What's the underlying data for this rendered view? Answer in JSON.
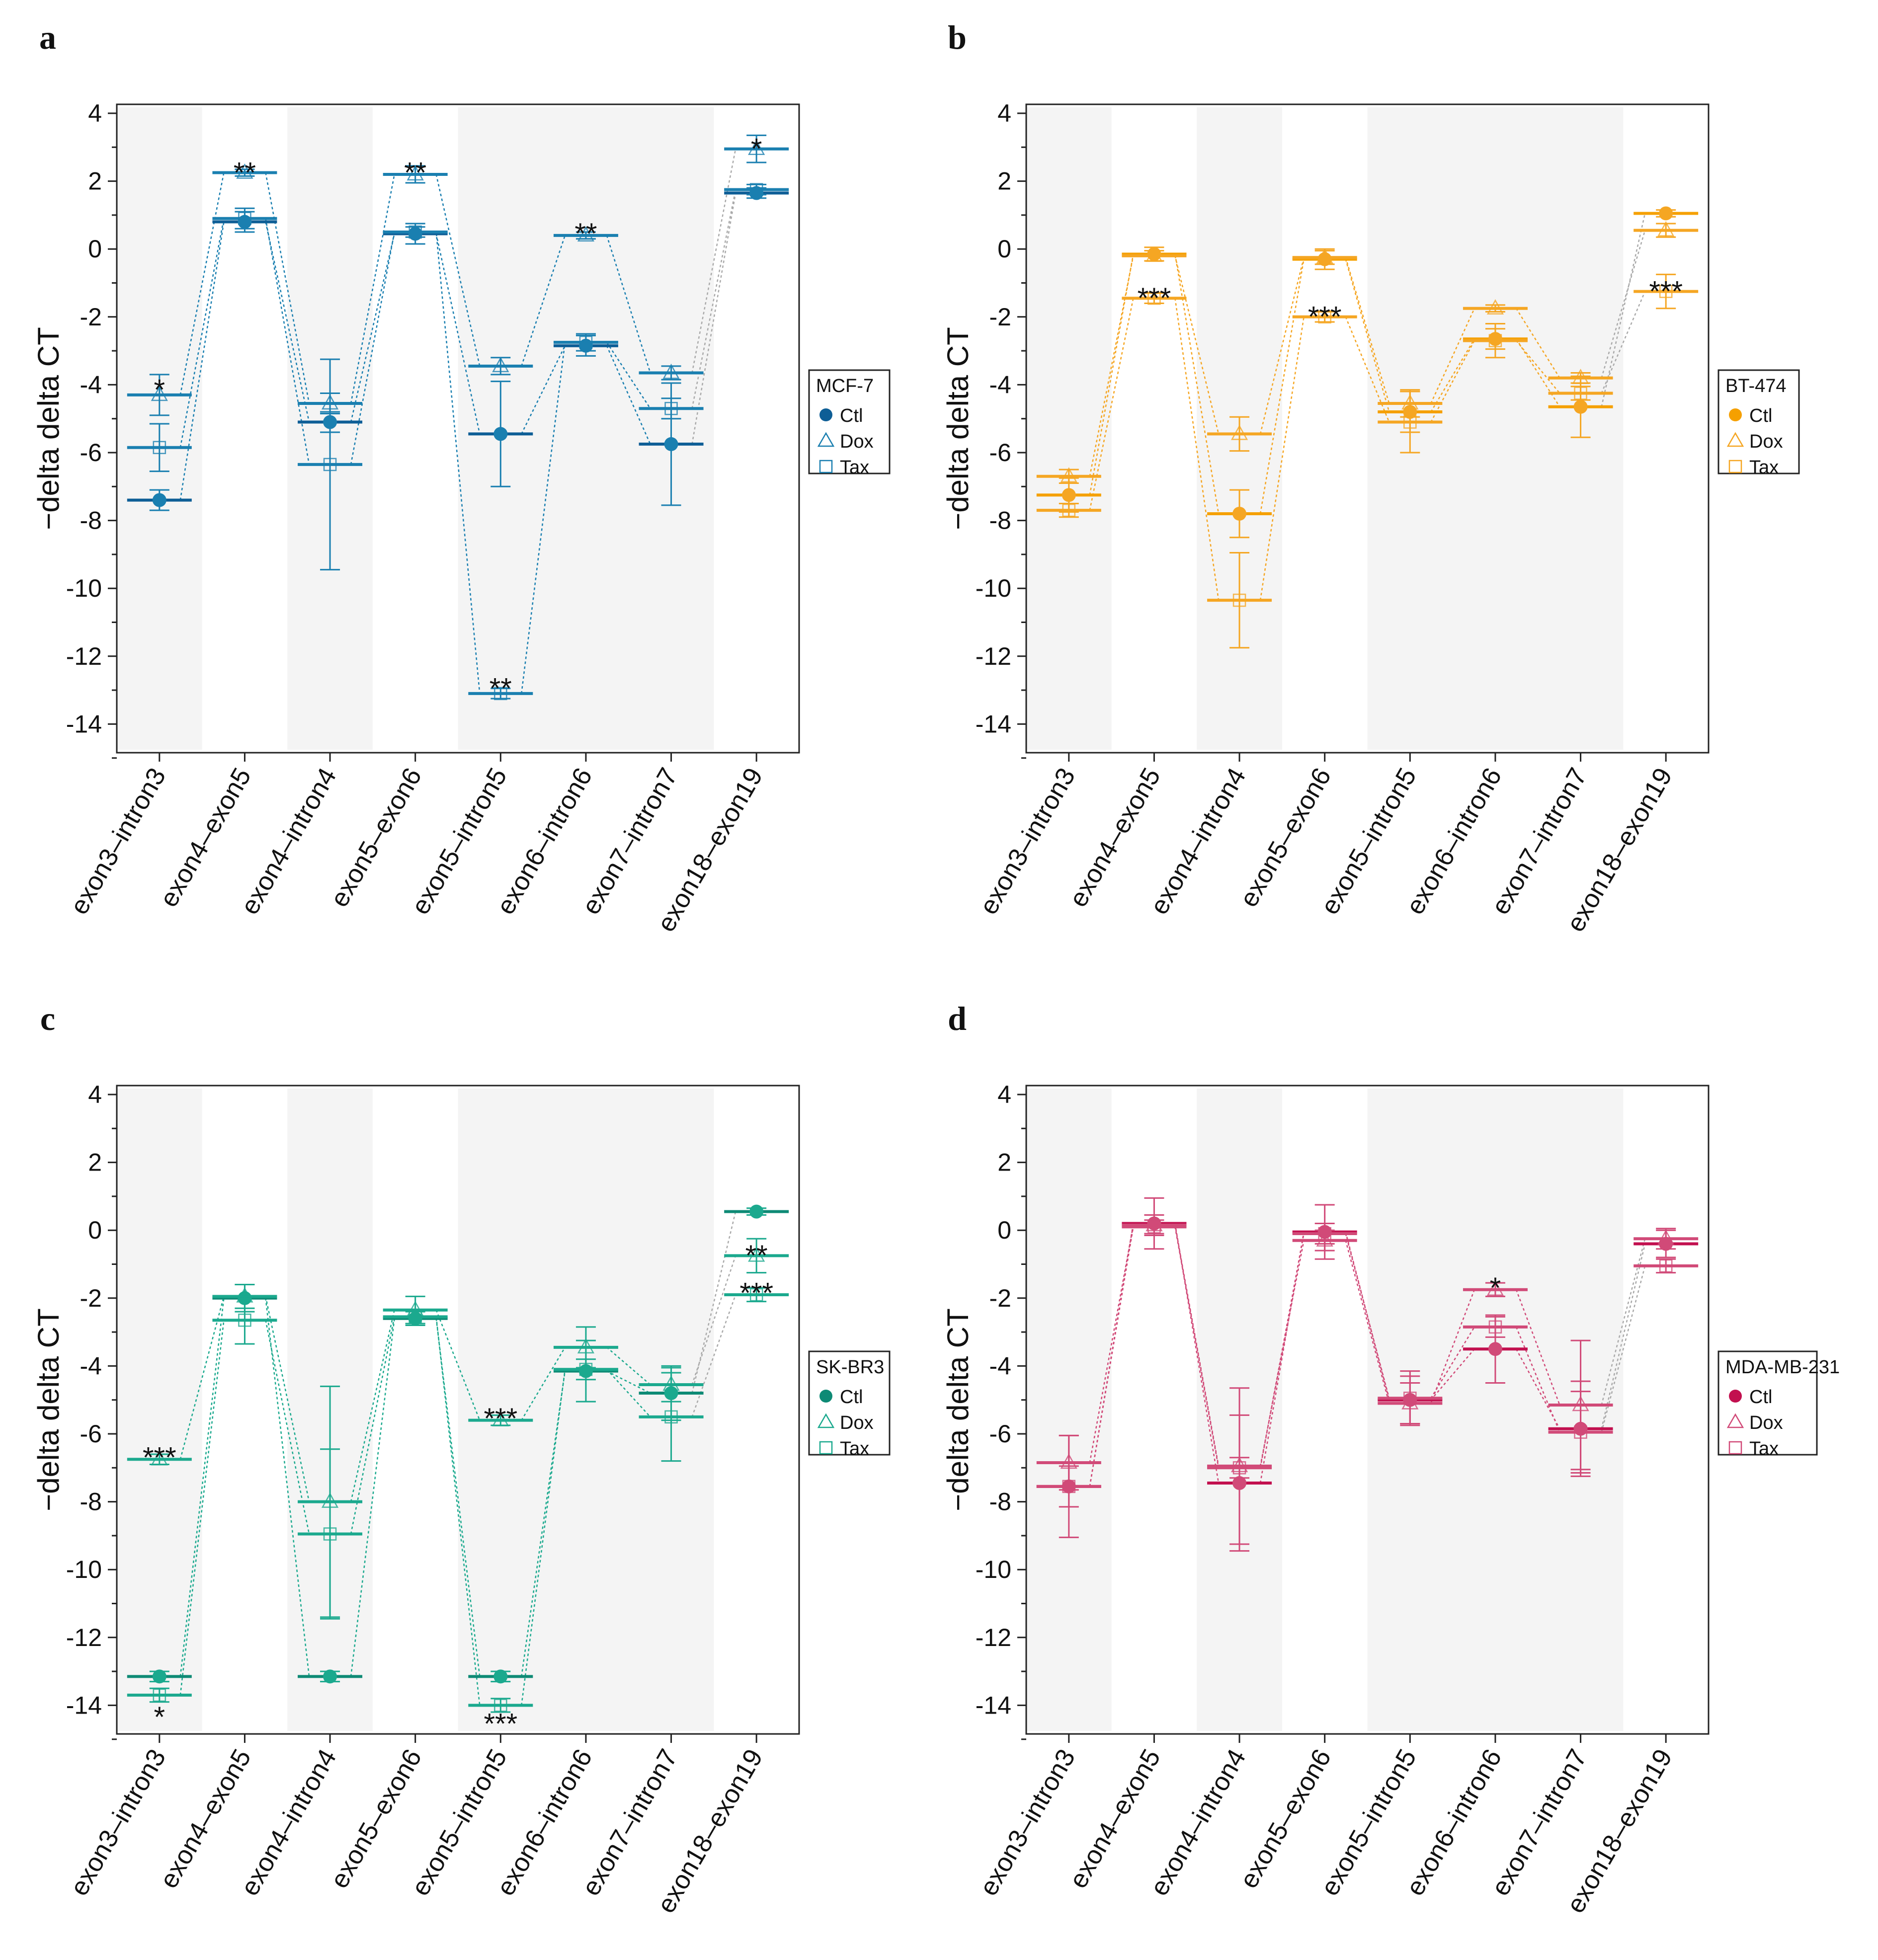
{
  "chart_data": [
    {
      "type": "line",
      "panel": "a",
      "cell_line": "MCF-7",
      "color": "#1a7fb0",
      "dark_color": "#0e5e96",
      "ylabel": "−delta delta CT",
      "ylim": [
        -15,
        4.5
      ],
      "yticks": [
        4,
        2,
        0,
        -2,
        -4,
        -6,
        -8,
        -10,
        -12,
        -14
      ],
      "categories": [
        "exon3–intron3",
        "exon4–exon5",
        "exon4–intron4",
        "exon5–exon6",
        "exon5–intron5",
        "exon6–intron6",
        "exon7–intron7",
        "exon18–exon19"
      ],
      "legend": {
        "title": "MCF-7",
        "entries": [
          "Ctl",
          "Dox",
          "Tax"
        ]
      },
      "series": [
        {
          "name": "Ctl",
          "values": [
            -7.4,
            0.8,
            -5.1,
            0.45,
            -5.45,
            -2.85,
            -5.75,
            1.65
          ],
          "errors": [
            0.3,
            0.3,
            0.3,
            0.3,
            1.55,
            0.3,
            1.8,
            0.15
          ]
        },
        {
          "name": "Dox",
          "values": [
            -4.3,
            2.25,
            -4.55,
            2.2,
            -3.45,
            0.4,
            -3.65,
            2.95
          ],
          "errors": [
            0.6,
            0.1,
            0.3,
            0.25,
            0.25,
            0.1,
            0.2,
            0.4
          ]
        },
        {
          "name": "Tax",
          "values": [
            -5.85,
            0.9,
            -6.35,
            0.5,
            -13.1,
            -2.75,
            -4.7,
            1.75
          ],
          "errors": [
            0.7,
            0.3,
            3.1,
            0.15,
            0.15,
            0.25,
            0.3,
            0.15
          ]
        }
      ],
      "significance": [
        {
          "category": 0,
          "y": -4.0,
          "label": "*"
        },
        {
          "category": 1,
          "y": 2.4,
          "label": "**"
        },
        {
          "category": 3,
          "y": 2.4,
          "label": "**"
        },
        {
          "category": 4,
          "y": -12.8,
          "label": "**"
        },
        {
          "category": 5,
          "y": 0.6,
          "label": "**"
        },
        {
          "category": 7,
          "y": 3.1,
          "label": "*"
        }
      ]
    },
    {
      "type": "line",
      "panel": "b",
      "cell_line": "BT-474",
      "color": "#f5a623",
      "dark_color": "#f5a000",
      "ylabel": "−delta delta CT",
      "ylim": [
        -15,
        4.5
      ],
      "yticks": [
        4,
        2,
        0,
        -2,
        -4,
        -6,
        -8,
        -10,
        -12,
        -14
      ],
      "categories": [
        "exon3–intron3",
        "exon4–exon5",
        "exon4–intron4",
        "exon5–exon6",
        "exon5–intron5",
        "exon6–intron6",
        "exon7–intron7",
        "exon18–exon19"
      ],
      "legend": {
        "title": "BT-474",
        "entries": [
          "Ctl",
          "Dox",
          "Tax"
        ]
      },
      "series": [
        {
          "name": "Ctl",
          "values": [
            -7.25,
            -0.15,
            -7.8,
            -0.3,
            -4.8,
            -2.65,
            -4.65,
            1.05
          ],
          "errors": [
            0.5,
            0.2,
            0.7,
            0.3,
            0.6,
            0.3,
            0.9,
            0.1
          ]
        },
        {
          "name": "Dox",
          "values": [
            -6.7,
            -0.2,
            -5.45,
            -0.25,
            -4.55,
            -1.75,
            -3.8,
            0.55
          ],
          "errors": [
            0.2,
            0.15,
            0.5,
            0.2,
            0.4,
            0.1,
            0.15,
            0.2
          ]
        },
        {
          "name": "Tax",
          "values": [
            -7.7,
            -1.45,
            -10.35,
            -2.0,
            -5.1,
            -2.7,
            -4.25,
            -1.25
          ],
          "errors": [
            0.2,
            0.15,
            1.4,
            0.15,
            0.9,
            0.5,
            0.2,
            0.5
          ]
        }
      ],
      "significance": [
        {
          "category": 1,
          "y": -1.3,
          "label": "***"
        },
        {
          "category": 3,
          "y": -1.85,
          "label": "***"
        },
        {
          "category": 7,
          "y": -1.1,
          "label": "***"
        }
      ]
    },
    {
      "type": "line",
      "panel": "c",
      "cell_line": "SK-BR3",
      "color": "#1ba98e",
      "dark_color": "#0e8a75",
      "ylabel": "−delta delta CT",
      "ylim": [
        -15,
        4.5
      ],
      "yticks": [
        4,
        2,
        0,
        -2,
        -4,
        -6,
        -8,
        -10,
        -12,
        -14
      ],
      "categories": [
        "exon3–intron3",
        "exon4–exon5",
        "exon4–intron4",
        "exon5–exon6",
        "exon5–intron5",
        "exon6–intron6",
        "exon7–intron7",
        "exon18–exon19"
      ],
      "legend": {
        "title": "SK-BR3",
        "entries": [
          "Ctl",
          "Dox",
          "Tax"
        ]
      },
      "series": [
        {
          "name": "Ctl",
          "values": [
            -13.15,
            -2.0,
            -13.15,
            -2.6,
            -13.15,
            -4.15,
            -4.8,
            0.55
          ],
          "errors": [
            0.15,
            0.4,
            0.15,
            0.2,
            0.15,
            0.9,
            0.8,
            0.1
          ]
        },
        {
          "name": "Dox",
          "values": [
            -6.75,
            -1.95,
            -8.0,
            -2.35,
            -5.6,
            -3.45,
            -4.55,
            -0.75
          ],
          "errors": [
            0.15,
            0.35,
            3.4,
            0.4,
            0.15,
            0.6,
            0.5,
            0.5
          ]
        },
        {
          "name": "Tax",
          "values": [
            -13.7,
            -2.65,
            -8.95,
            -2.55,
            -14.0,
            -4.1,
            -5.5,
            -1.9
          ],
          "errors": [
            0.2,
            0.7,
            2.5,
            0.2,
            0.2,
            0.3,
            1.3,
            0.2
          ]
        }
      ],
      "significance": [
        {
          "category": 0,
          "y": -6.55,
          "label": "***"
        },
        {
          "category": 0,
          "y": -14.2,
          "label": "*"
        },
        {
          "category": 4,
          "y": -5.4,
          "label": "***"
        },
        {
          "category": 4,
          "y": -14.4,
          "label": "***"
        },
        {
          "category": 7,
          "y": -0.6,
          "label": "**"
        },
        {
          "category": 7,
          "y": -1.7,
          "label": "***"
        }
      ]
    },
    {
      "type": "line",
      "panel": "d",
      "cell_line": "MDA-MB-231",
      "color": "#d14a78",
      "dark_color": "#c2104f",
      "ylabel": "−delta delta CT",
      "ylim": [
        -15,
        4.5
      ],
      "yticks": [
        4,
        2,
        0,
        -2,
        -4,
        -6,
        -8,
        -10,
        -12,
        -14
      ],
      "categories": [
        "exon3–intron3",
        "exon4–exon5",
        "exon4–intron4",
        "exon5–exon6",
        "exon5–intron5",
        "exon6–intron6",
        "exon7–intron7",
        "exon18–exon19"
      ],
      "legend": {
        "title": "MDA-MB-231",
        "entries": [
          "Ctl",
          "Dox",
          "Tax"
        ]
      },
      "series": [
        {
          "name": "Ctl",
          "values": [
            -7.55,
            0.2,
            -7.45,
            -0.05,
            -5.0,
            -3.5,
            -5.85,
            -0.4
          ],
          "errors": [
            1.5,
            0.75,
            2.0,
            0.8,
            0.7,
            1.0,
            1.4,
            0.4
          ]
        },
        {
          "name": "Dox",
          "values": [
            -6.85,
            0.15,
            -6.95,
            -0.3,
            -5.1,
            -1.75,
            -5.15,
            -0.25
          ],
          "errors": [
            0.8,
            0.3,
            2.3,
            0.3,
            0.6,
            0.2,
            1.9,
            0.3
          ]
        },
        {
          "name": "Tax",
          "values": [
            -7.55,
            0.1,
            -7.0,
            -0.1,
            -4.95,
            -2.85,
            -5.95,
            -1.05
          ],
          "errors": [
            0.6,
            0.2,
            0.3,
            0.3,
            0.8,
            0.3,
            1.2,
            0.2
          ]
        }
      ],
      "significance": [
        {
          "category": 5,
          "y": -1.55,
          "label": "*"
        }
      ]
    }
  ]
}
